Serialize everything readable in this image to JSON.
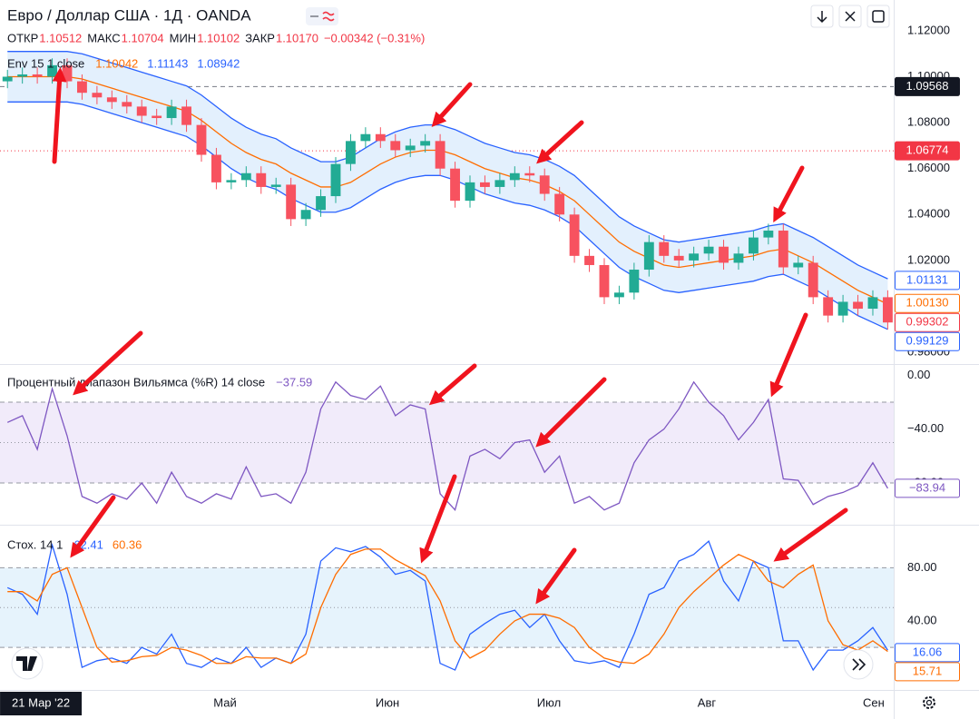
{
  "header": {
    "title": "Евро / Доллар США · 1Д · OANDA",
    "ohlc": [
      {
        "label": "ОТКР",
        "value": "1.10512"
      },
      {
        "label": "МАКС",
        "value": "1.10704"
      },
      {
        "label": "МИН",
        "value": "1.10102"
      },
      {
        "label": "ЗАКР",
        "value": "1.10170"
      }
    ],
    "change": "−0.00342 (−0.31%)",
    "value_color": "#f23645"
  },
  "chart_data": [
    {
      "type": "candlestick",
      "title": "Env 15 1 close",
      "legend_values": [
        {
          "text": "1.10042",
          "color": "#ff6d00"
        },
        {
          "text": "1.11143",
          "color": "#2962ff"
        },
        {
          "text": "1.08942",
          "color": "#2962ff"
        }
      ],
      "xlim": [
        -0.5,
        59.4
      ],
      "ylim": [
        0.9753,
        1.1334
      ],
      "yticks": [
        {
          "value": 1.12,
          "label": "1.12000"
        },
        {
          "value": 1.1,
          "label": "1.10000"
        },
        {
          "value": 1.08,
          "label": "1.08000"
        },
        {
          "value": 1.06,
          "label": "1.06000"
        },
        {
          "value": 1.04,
          "label": "1.04000"
        },
        {
          "value": 1.02,
          "label": "1.02000"
        },
        {
          "value": 1.0,
          "label": "1.00000"
        },
        {
          "value": 0.98,
          "label": "0.98000"
        }
      ],
      "up_color": "#22ab94",
      "down_color": "#f7525f",
      "open": [
        1.098,
        1.1,
        1.101,
        1.1,
        1.105,
        1.098,
        1.093,
        1.091,
        1.089,
        1.087,
        1.083,
        1.082,
        1.087,
        1.079,
        1.066,
        1.054,
        1.055,
        1.058,
        1.052,
        1.053,
        1.038,
        1.042,
        1.048,
        1.062,
        1.072,
        1.075,
        1.072,
        1.068,
        1.07,
        1.072,
        1.06,
        1.046,
        1.054,
        1.052,
        1.055,
        1.058,
        1.057,
        1.049,
        1.04,
        1.022,
        1.018,
        1.004,
        1.006,
        1.016,
        1.028,
        1.022,
        1.02,
        1.023,
        1.026,
        1.019,
        1.023,
        1.03,
        1.033,
        1.017,
        1.019,
        1.004,
        0.996,
        1.002,
        0.999,
        1.004
      ],
      "high": [
        1.103,
        1.104,
        1.104,
        1.108,
        1.108,
        1.101,
        1.096,
        1.094,
        1.092,
        1.09,
        1.086,
        1.09,
        1.09,
        1.082,
        1.069,
        1.058,
        1.061,
        1.061,
        1.056,
        1.056,
        1.045,
        1.051,
        1.065,
        1.075,
        1.078,
        1.078,
        1.075,
        1.073,
        1.075,
        1.075,
        1.063,
        1.057,
        1.057,
        1.058,
        1.061,
        1.061,
        1.06,
        1.052,
        1.043,
        1.025,
        1.021,
        1.009,
        1.019,
        1.031,
        1.031,
        1.025,
        1.026,
        1.029,
        1.029,
        1.026,
        1.033,
        1.036,
        1.036,
        1.022,
        1.022,
        1.007,
        1.005,
        1.005,
        1.007,
        1.007
      ],
      "low": [
        1.095,
        1.097,
        1.097,
        1.097,
        1.095,
        1.09,
        1.088,
        1.086,
        1.084,
        1.08,
        1.079,
        1.079,
        1.076,
        1.063,
        1.051,
        1.051,
        1.052,
        1.049,
        1.049,
        1.035,
        1.035,
        1.039,
        1.045,
        1.059,
        1.069,
        1.069,
        1.065,
        1.065,
        1.067,
        1.057,
        1.043,
        1.043,
        1.049,
        1.049,
        1.052,
        1.054,
        1.046,
        1.037,
        1.019,
        1.015,
        1.001,
        1.001,
        1.003,
        1.013,
        1.019,
        1.017,
        1.017,
        1.02,
        1.016,
        1.016,
        1.02,
        1.027,
        1.014,
        1.014,
        1.001,
        0.993,
        0.993,
        0.996,
        0.996,
        0.99
      ],
      "close": [
        1.1,
        1.101,
        1.1,
        1.105,
        1.098,
        1.093,
        1.091,
        1.089,
        1.087,
        1.083,
        1.082,
        1.087,
        1.079,
        1.066,
        1.054,
        1.055,
        1.058,
        1.052,
        1.053,
        1.038,
        1.042,
        1.048,
        1.062,
        1.072,
        1.075,
        1.072,
        1.068,
        1.07,
        1.072,
        1.06,
        1.046,
        1.054,
        1.052,
        1.055,
        1.058,
        1.057,
        1.049,
        1.04,
        1.022,
        1.018,
        1.004,
        1.006,
        1.016,
        1.028,
        1.022,
        1.02,
        1.023,
        1.026,
        1.019,
        1.023,
        1.03,
        1.033,
        1.017,
        1.019,
        1.004,
        0.996,
        1.002,
        0.999,
        1.004,
        0.993
      ],
      "lines": [
        {
          "color": "#2962ff",
          "values": [
            1.111,
            1.111,
            1.111,
            1.111,
            1.111,
            1.11,
            1.108,
            1.106,
            1.104,
            1.102,
            1.1,
            1.098,
            1.096,
            1.092,
            1.087,
            1.082,
            1.078,
            1.075,
            1.073,
            1.069,
            1.066,
            1.063,
            1.063,
            1.065,
            1.069,
            1.073,
            1.076,
            1.078,
            1.079,
            1.079,
            1.077,
            1.074,
            1.071,
            1.069,
            1.067,
            1.066,
            1.064,
            1.061,
            1.057,
            1.051,
            1.045,
            1.039,
            1.035,
            1.032,
            1.029,
            1.028,
            1.029,
            1.03,
            1.031,
            1.032,
            1.033,
            1.035,
            1.036,
            1.033,
            1.03,
            1.026,
            1.022,
            1.018,
            1.015,
            1.012
          ]
        },
        {
          "color": "#ff6d00",
          "values": [
            1.1,
            1.1,
            1.1,
            1.1,
            1.1,
            1.099,
            1.097,
            1.095,
            1.093,
            1.091,
            1.089,
            1.087,
            1.085,
            1.081,
            1.076,
            1.071,
            1.067,
            1.064,
            1.062,
            1.058,
            1.055,
            1.052,
            1.052,
            1.054,
            1.058,
            1.062,
            1.065,
            1.067,
            1.068,
            1.068,
            1.066,
            1.063,
            1.06,
            1.058,
            1.056,
            1.055,
            1.053,
            1.05,
            1.046,
            1.04,
            1.034,
            1.028,
            1.024,
            1.021,
            1.018,
            1.017,
            1.018,
            1.019,
            1.02,
            1.021,
            1.022,
            1.024,
            1.025,
            1.022,
            1.019,
            1.015,
            1.011,
            1.007,
            1.004,
            1.001
          ]
        },
        {
          "color": "#2962ff",
          "values": [
            1.089,
            1.089,
            1.089,
            1.089,
            1.089,
            1.088,
            1.086,
            1.084,
            1.082,
            1.08,
            1.078,
            1.076,
            1.074,
            1.07,
            1.065,
            1.06,
            1.056,
            1.053,
            1.051,
            1.047,
            1.044,
            1.041,
            1.041,
            1.043,
            1.047,
            1.051,
            1.054,
            1.056,
            1.057,
            1.057,
            1.055,
            1.052,
            1.049,
            1.047,
            1.045,
            1.044,
            1.042,
            1.039,
            1.035,
            1.029,
            1.023,
            1.017,
            1.013,
            1.01,
            1.007,
            1.006,
            1.007,
            1.008,
            1.009,
            1.01,
            1.011,
            1.013,
            1.014,
            1.011,
            1.008,
            1.004,
            1.0,
            0.996,
            0.993,
            0.99
          ]
        }
      ],
      "fill_between": [
        0,
        2
      ],
      "fill_color": "#e3f0fd",
      "badges": [
        {
          "value": 1.09568,
          "label": "1.09568",
          "bg": "#131722",
          "fg": "#ffffff",
          "line": "5 4",
          "line_color": "#787b86"
        },
        {
          "value": 1.06774,
          "label": "1.06774",
          "bg": "#f23645",
          "fg": "#ffffff",
          "line": "1 3",
          "line_color": "#f23645"
        },
        {
          "value": 1.01131,
          "label": "1.01131",
          "bg": "#ffffff",
          "fg": "#2962ff"
        },
        {
          "value": 1.0013,
          "label": "1.00130",
          "bg": "#ffffff",
          "fg": "#ff6d00"
        },
        {
          "value": 0.99302,
          "label": "0.99302",
          "bg": "#ffffff",
          "fg": "#f23645"
        },
        {
          "value": 0.99129,
          "label": "0.99129",
          "bg": "#ffffff",
          "fg": "#2962ff"
        }
      ]
    },
    {
      "type": "line",
      "title": "Процентный диапазон Вильямса (%R) 14 close",
      "legend_values": [
        {
          "text": "−37.59",
          "color": "#7e57c2"
        }
      ],
      "xlim": [
        -0.5,
        59.4
      ],
      "ylim": [
        -111,
        7
      ],
      "yticks": [
        {
          "value": 0,
          "label": "0.00"
        },
        {
          "value": -40,
          "label": "−40.00"
        },
        {
          "value": -80,
          "label": "−80.00"
        }
      ],
      "levels": [
        {
          "value": -20,
          "dash": "5 4"
        },
        {
          "value": -50,
          "dash": "1 3"
        },
        {
          "value": -80,
          "dash": "5 4"
        }
      ],
      "level_fill": [
        -80,
        -20
      ],
      "level_fill_color": "#f1ebfa",
      "lines": [
        {
          "color": "#7e57c2",
          "values": [
            -35,
            -30,
            -55,
            -10,
            -45,
            -90,
            -95,
            -88,
            -92,
            -80,
            -95,
            -72,
            -90,
            -95,
            -88,
            -92,
            -68,
            -90,
            -88,
            -95,
            -72,
            -25,
            -5,
            -15,
            -18,
            -8,
            -30,
            -22,
            -25,
            -88,
            -100,
            -60,
            -55,
            -62,
            -50,
            -48,
            -72,
            -60,
            -95,
            -90,
            -100,
            -95,
            -65,
            -48,
            -40,
            -25,
            -5,
            -20,
            -30,
            -48,
            -35,
            -18,
            -77,
            -78,
            -96,
            -90,
            -87,
            -82,
            -65,
            -84
          ]
        }
      ],
      "badges": [
        {
          "value": -83.94,
          "label": "−83.94",
          "bg": "#ffffff",
          "fg": "#7e57c2"
        }
      ]
    },
    {
      "type": "line",
      "title": "Стох. 14 1",
      "legend_values": [
        {
          "text": "62.41",
          "color": "#2962ff"
        },
        {
          "text": "60.36",
          "color": "#ff6d00"
        }
      ],
      "xlim": [
        -0.5,
        59.4
      ],
      "ylim": [
        -12,
        111
      ],
      "yticks": [
        {
          "value": 80,
          "label": "80.00"
        },
        {
          "value": 40,
          "label": "40.00"
        }
      ],
      "xticks": [
        {
          "value": 14.58,
          "label": "Май"
        },
        {
          "value": 25.47,
          "label": "Июн"
        },
        {
          "value": 36.29,
          "label": "Июл"
        },
        {
          "value": 46.87,
          "label": "Авг"
        },
        {
          "value": 58.06,
          "label": "Сен"
        }
      ],
      "crosshair": {
        "value": 2.24,
        "label": "21 Мар '22"
      },
      "levels": [
        {
          "value": 80,
          "dash": "5 4"
        },
        {
          "value": 50,
          "dash": "1 3"
        },
        {
          "value": 20,
          "dash": "5 4"
        }
      ],
      "level_fill": [
        20,
        80
      ],
      "level_fill_color": "#e6f3fc",
      "lines": [
        {
          "color": "#2962ff",
          "values": [
            65,
            60,
            45,
            97,
            60,
            5,
            10,
            12,
            8,
            20,
            15,
            30,
            8,
            5,
            12,
            8,
            20,
            5,
            12,
            8,
            30,
            85,
            95,
            92,
            96,
            88,
            75,
            78,
            70,
            8,
            3,
            30,
            38,
            45,
            48,
            35,
            45,
            25,
            10,
            8,
            10,
            5,
            30,
            60,
            65,
            85,
            90,
            100,
            70,
            55,
            85,
            80,
            25,
            25,
            3,
            18,
            18,
            25,
            35,
            18
          ]
        },
        {
          "color": "#ff6d00",
          "values": [
            62,
            62,
            55,
            75,
            80,
            50,
            20,
            9,
            10,
            13,
            14,
            20,
            18,
            14,
            8,
            8,
            13,
            12,
            12,
            8,
            15,
            50,
            75,
            90,
            94,
            94,
            86,
            80,
            74,
            55,
            25,
            12,
            18,
            30,
            40,
            45,
            45,
            42,
            35,
            20,
            12,
            9,
            8,
            15,
            30,
            50,
            62,
            72,
            82,
            90,
            85,
            70,
            65,
            75,
            82,
            40,
            22,
            18,
            25,
            17
          ]
        }
      ],
      "badges": [
        {
          "value": 16.06,
          "label": "16.06",
          "bg": "#ffffff",
          "fg": "#2962ff"
        },
        {
          "value": 15.71,
          "label": "15.71",
          "bg": "#ffffff",
          "fg": "#ff6d00"
        }
      ]
    }
  ]
}
